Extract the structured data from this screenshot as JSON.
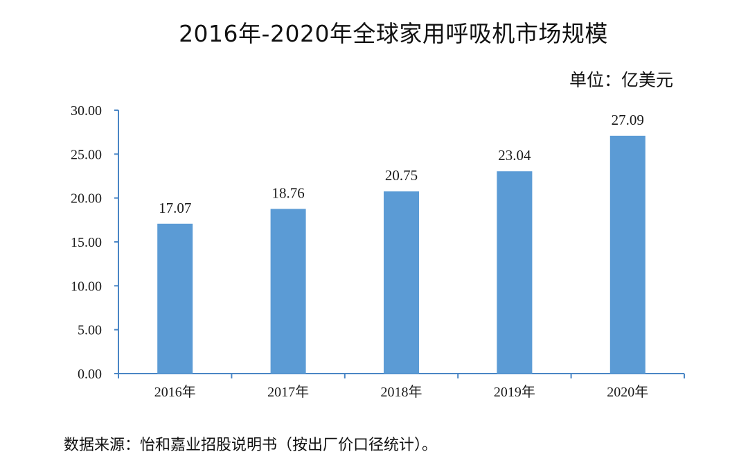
{
  "title": "2016年-2020年全球家用呼吸机市场规模",
  "unit_label": "单位：亿美元",
  "source_note": "数据来源：怡和嘉业招股说明书（按出厂价口径统计）。",
  "colors": {
    "bar": "#5B9BD5",
    "axis": "#4a86c5",
    "text": "#1a1a1a"
  },
  "chart_data": {
    "type": "bar",
    "title": "2016年-2020年全球家用呼吸机市场规模",
    "xlabel": "",
    "ylabel": "",
    "unit": "亿美元",
    "categories": [
      "2016年",
      "2017年",
      "2018年",
      "2019年",
      "2020年"
    ],
    "values": [
      17.07,
      18.76,
      20.75,
      23.04,
      27.09
    ],
    "value_labels": [
      "17.07",
      "18.76",
      "20.75",
      "23.04",
      "27.09"
    ],
    "ylim": [
      0,
      30
    ],
    "yticks": [
      "0.00",
      "5.00",
      "10.00",
      "15.00",
      "20.00",
      "25.00",
      "30.00"
    ],
    "grid": false,
    "legend": "none"
  }
}
